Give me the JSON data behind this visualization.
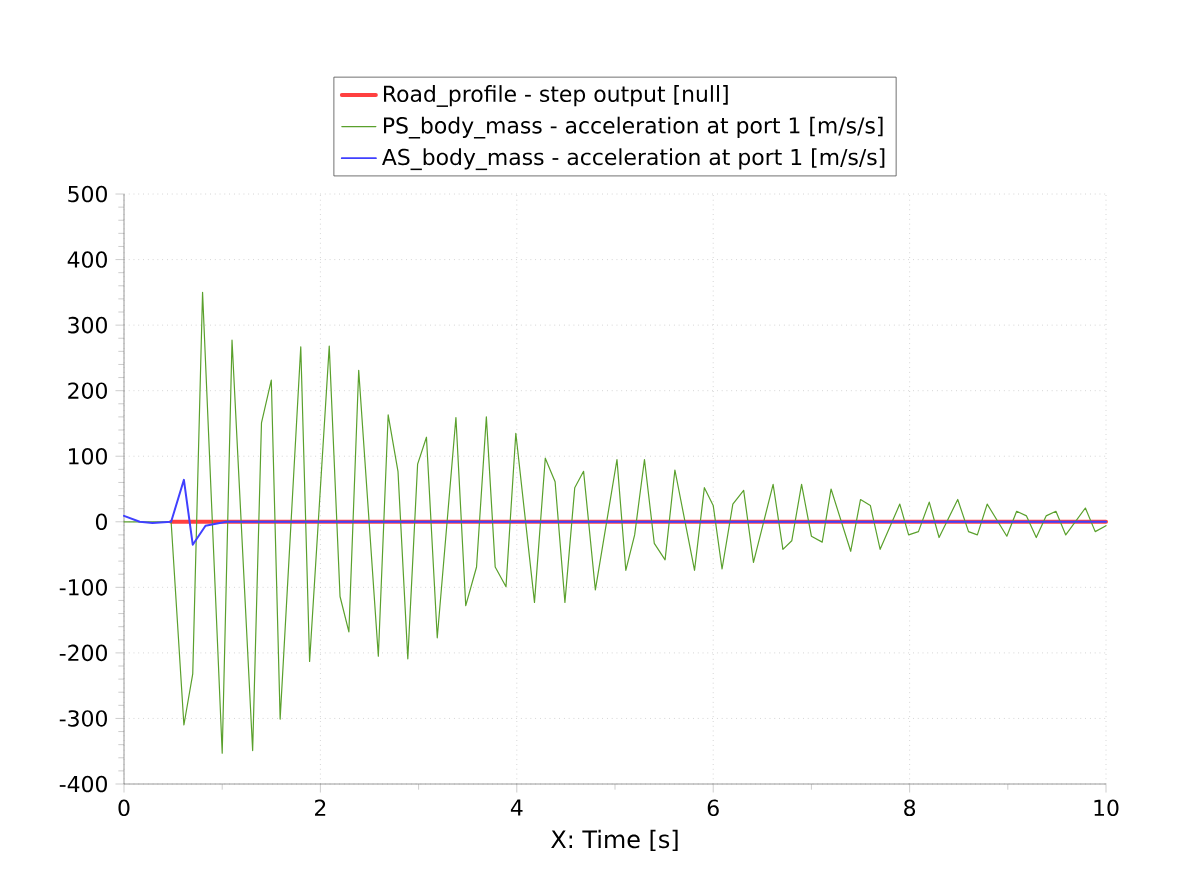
{
  "chart_data": {
    "type": "line",
    "xlabel": "X: Time [s]",
    "xlim": [
      0,
      10
    ],
    "ylim": [
      -400,
      500
    ],
    "xticks": [
      0,
      2,
      4,
      6,
      8,
      10
    ],
    "yticks": [
      -400,
      -300,
      -200,
      -100,
      0,
      100,
      200,
      300,
      400,
      500
    ],
    "grid": true,
    "legend": "top",
    "marker": "none",
    "line_style": "solid",
    "series": [
      {
        "name": "Road_profile - step output [null]",
        "color": "#ff4040",
        "x": [
          0.48,
          10
        ],
        "values": [
          0,
          0
        ]
      },
      {
        "name": "PS_body_mass - acceleration at port 1 [m/s/s]",
        "color": "#5aa02c",
        "x": [
          0,
          0.48,
          0.61,
          0.7,
          0.8,
          1.0,
          1.1,
          1.31,
          1.4,
          1.5,
          1.59,
          1.8,
          1.89,
          2.09,
          2.2,
          2.29,
          2.39,
          2.59,
          2.69,
          2.79,
          2.89,
          2.99,
          3.08,
          3.19,
          3.38,
          3.48,
          3.59,
          3.69,
          3.78,
          3.89,
          3.99,
          4.18,
          4.29,
          4.39,
          4.49,
          4.59,
          4.68,
          4.8,
          5.02,
          5.11,
          5.2,
          5.3,
          5.4,
          5.51,
          5.61,
          5.81,
          5.91,
          6.0,
          6.09,
          6.2,
          6.31,
          6.41,
          6.61,
          6.71,
          6.8,
          6.9,
          7.0,
          7.11,
          7.2,
          7.4,
          7.5,
          7.6,
          7.7,
          7.9,
          7.99,
          8.09,
          8.2,
          8.3,
          8.49,
          8.6,
          8.69,
          8.79,
          8.99,
          9.09,
          9.19,
          9.29,
          9.39,
          9.49,
          9.59,
          9.79,
          9.89,
          10
        ],
        "values": [
          0,
          0,
          -310,
          -232,
          350,
          -353,
          277,
          -349,
          151,
          216,
          -301,
          267,
          -213,
          268,
          -114,
          -168,
          231,
          -205,
          163,
          77,
          -209,
          88,
          129,
          -177,
          159,
          -128,
          -69,
          160,
          -69,
          -99,
          135,
          -123,
          97,
          61,
          -123,
          52,
          77,
          -104,
          95,
          -74,
          -20,
          95,
          -33,
          -58,
          79,
          -74,
          52,
          25,
          -72,
          27,
          48,
          -62,
          57,
          -42,
          -29,
          57,
          -22,
          -31,
          50,
          -45,
          34,
          25,
          -42,
          27,
          -20,
          -15,
          30,
          -24,
          34,
          -15,
          -20,
          27,
          -22,
          16,
          9,
          -24,
          9,
          16,
          -20,
          21,
          -15,
          -6
        ]
      },
      {
        "name": "AS_body_mass - acceleration at port 1 [m/s/s]",
        "color": "#4040ff",
        "x": [
          0,
          0.16,
          0.29,
          0.48,
          0.61,
          0.7,
          0.83,
          1.04,
          10
        ],
        "values": [
          9,
          0,
          -2,
          0,
          64,
          -35,
          -6,
          0,
          0
        ]
      }
    ]
  }
}
